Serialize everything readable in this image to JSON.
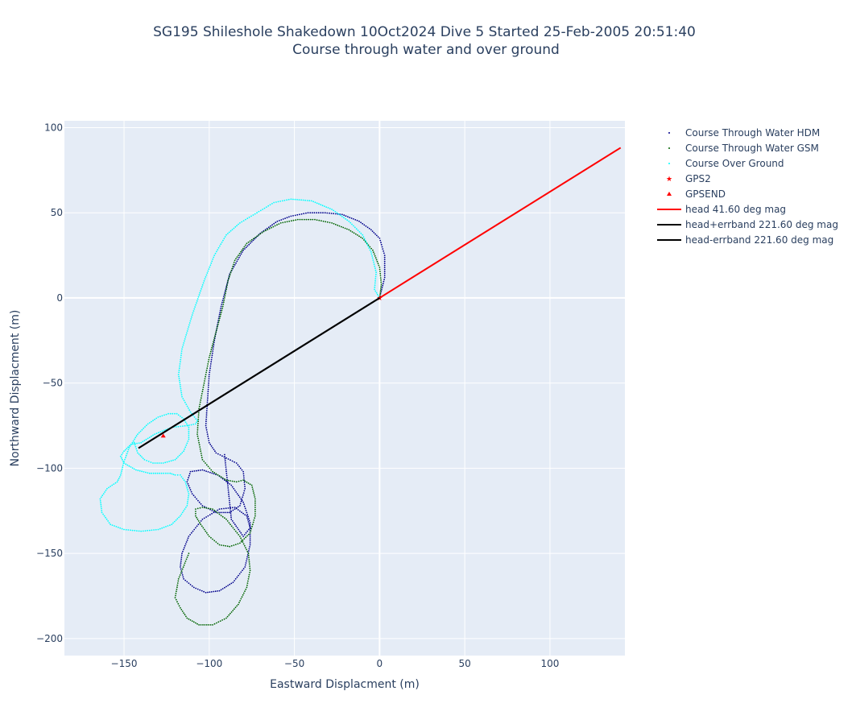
{
  "chart_data": {
    "type": "scatter",
    "title": "SG195 Shileshole Shakedown 10Oct2024 Dive 5 Started 25-Feb-2005 20:51:40",
    "subtitle": "Course through water and over ground",
    "xlabel": "Eastward Displacment (m)",
    "ylabel": "Northward Displacment (m)",
    "xlim": [
      -185,
      144
    ],
    "ylim": [
      -210,
      104
    ],
    "xticks": [
      -150,
      -100,
      -50,
      0,
      50,
      100
    ],
    "yticks": [
      100,
      50,
      0,
      -50,
      -100,
      -150,
      -200
    ],
    "tick_labels_x": [
      "−150",
      "−100",
      "−50",
      "0",
      "50",
      "100"
    ],
    "tick_labels_y": [
      "100",
      "50",
      "0",
      "−50",
      "−100",
      "−150",
      "−200"
    ],
    "plot_background": "#e5ecf6",
    "grid": true,
    "legend_position": "right",
    "series": [
      {
        "name": "Course Through Water HDM",
        "mode": "dotted-markers",
        "color": "#00008b",
        "x": [
          0,
          3,
          3,
          0,
          -5,
          -12,
          -22,
          -32,
          -42,
          -52,
          -60,
          -70,
          -80,
          -88,
          -93,
          -97,
          -100,
          -101,
          -102,
          -100,
          -96,
          -90,
          -84,
          -80,
          -79,
          -82,
          -88,
          -96,
          -104,
          -110,
          -113,
          -111,
          -104,
          -95,
          -87,
          -80,
          -76,
          -76,
          -79,
          -86,
          -94,
          -102,
          -109,
          -115,
          -117,
          -116,
          -112,
          -104,
          -94,
          -85,
          -78,
          -76,
          -80,
          -87,
          -91
        ],
        "y": [
          0,
          12,
          25,
          35,
          40,
          45,
          49,
          50,
          50,
          48,
          45,
          38,
          28,
          14,
          -5,
          -25,
          -45,
          -60,
          -75,
          -85,
          -91,
          -94,
          -97,
          -102,
          -112,
          -122,
          -126,
          -126,
          -122,
          -115,
          -108,
          -102,
          -101,
          -104,
          -110,
          -120,
          -132,
          -145,
          -158,
          -167,
          -172,
          -173,
          -170,
          -165,
          -158,
          -150,
          -140,
          -130,
          -124,
          -123,
          -128,
          -135,
          -140,
          -130,
          -92
        ]
      },
      {
        "name": "Course Through Water GSM",
        "mode": "dotted-markers",
        "color": "#006400",
        "x": [
          0,
          1,
          0,
          -4,
          -10,
          -18,
          -28,
          -38,
          -48,
          -58,
          -68,
          -78,
          -85,
          -89,
          -92,
          -96,
          -100,
          -103,
          -106,
          -107,
          -104,
          -98,
          -90,
          -84,
          -80,
          -75,
          -73,
          -73,
          -76,
          -82,
          -88,
          -94,
          -100,
          -105,
          -108,
          -108,
          -104,
          -98,
          -90,
          -82,
          -77,
          -76,
          -78,
          -83,
          -90,
          -98,
          -106,
          -113,
          -117,
          -120,
          -118,
          -112
        ],
        "y": [
          0,
          8,
          18,
          28,
          35,
          40,
          44,
          46,
          46,
          44,
          39,
          32,
          22,
          10,
          -5,
          -20,
          -35,
          -50,
          -65,
          -80,
          -95,
          -102,
          -107,
          -108,
          -107,
          -110,
          -118,
          -128,
          -138,
          -144,
          -146,
          -145,
          -140,
          -133,
          -128,
          -124,
          -123,
          -124,
          -130,
          -140,
          -150,
          -160,
          -170,
          -180,
          -188,
          -192,
          -192,
          -188,
          -182,
          -176,
          -165,
          -150
        ]
      },
      {
        "name": "Course Over Ground",
        "mode": "dotted-markers",
        "color": "#00ffff",
        "x": [
          0,
          -3,
          -2,
          -5,
          -10,
          -18,
          -28,
          -40,
          -52,
          -62,
          -72,
          -82,
          -90,
          -97,
          -103,
          -110,
          -116,
          -118,
          -116,
          -111,
          -107,
          -108,
          -113,
          -122,
          -132,
          -140,
          -146,
          -150,
          -152,
          -150,
          -143,
          -135,
          -128,
          -123,
          -120,
          -117,
          -114,
          -112,
          -113,
          -117,
          -122,
          -130,
          -140,
          -150,
          -158,
          -163,
          -164,
          -160,
          -154,
          -152,
          -150,
          -147,
          -142,
          -136,
          -130,
          -124,
          -119,
          -115,
          -112,
          -112,
          -115,
          -120,
          -127,
          -133,
          -138,
          -142,
          -144
        ],
        "y": [
          0,
          5,
          15,
          27,
          37,
          45,
          52,
          57,
          58,
          56,
          50,
          44,
          37,
          25,
          10,
          -10,
          -30,
          -45,
          -58,
          -67,
          -72,
          -74,
          -75,
          -76,
          -80,
          -85,
          -86,
          -90,
          -93,
          -97,
          -101,
          -103,
          -103,
          -103,
          -104,
          -104,
          -108,
          -115,
          -122,
          -128,
          -133,
          -136,
          -137,
          -136,
          -133,
          -126,
          -118,
          -112,
          -108,
          -104,
          -96,
          -88,
          -80,
          -74,
          -70,
          -68,
          -68,
          -71,
          -76,
          -83,
          -90,
          -95,
          -97,
          -97,
          -95,
          -91,
          -85
        ]
      },
      {
        "name": "GPS2",
        "mode": "star-marker",
        "color": "#ff0000",
        "x": [
          0
        ],
        "y": [
          0
        ]
      },
      {
        "name": "GPSEND",
        "mode": "triangle-marker",
        "color": "#ff0000",
        "x": [
          -127
        ],
        "y": [
          -81
        ]
      },
      {
        "name": "head 41.60 deg mag",
        "mode": "line",
        "color": "#ff0000",
        "x": [
          0,
          141.5
        ],
        "y": [
          0,
          88.2
        ]
      },
      {
        "name": "head+errband 221.60 deg mag",
        "mode": "line",
        "color": "#000000",
        "x": [
          0,
          -141.5
        ],
        "y": [
          0,
          -88.2
        ]
      },
      {
        "name": "head-errband 221.60 deg mag",
        "mode": "line",
        "color": "#000000",
        "x": [
          0,
          -141.5
        ],
        "y": [
          0,
          -88.2
        ]
      }
    ]
  }
}
